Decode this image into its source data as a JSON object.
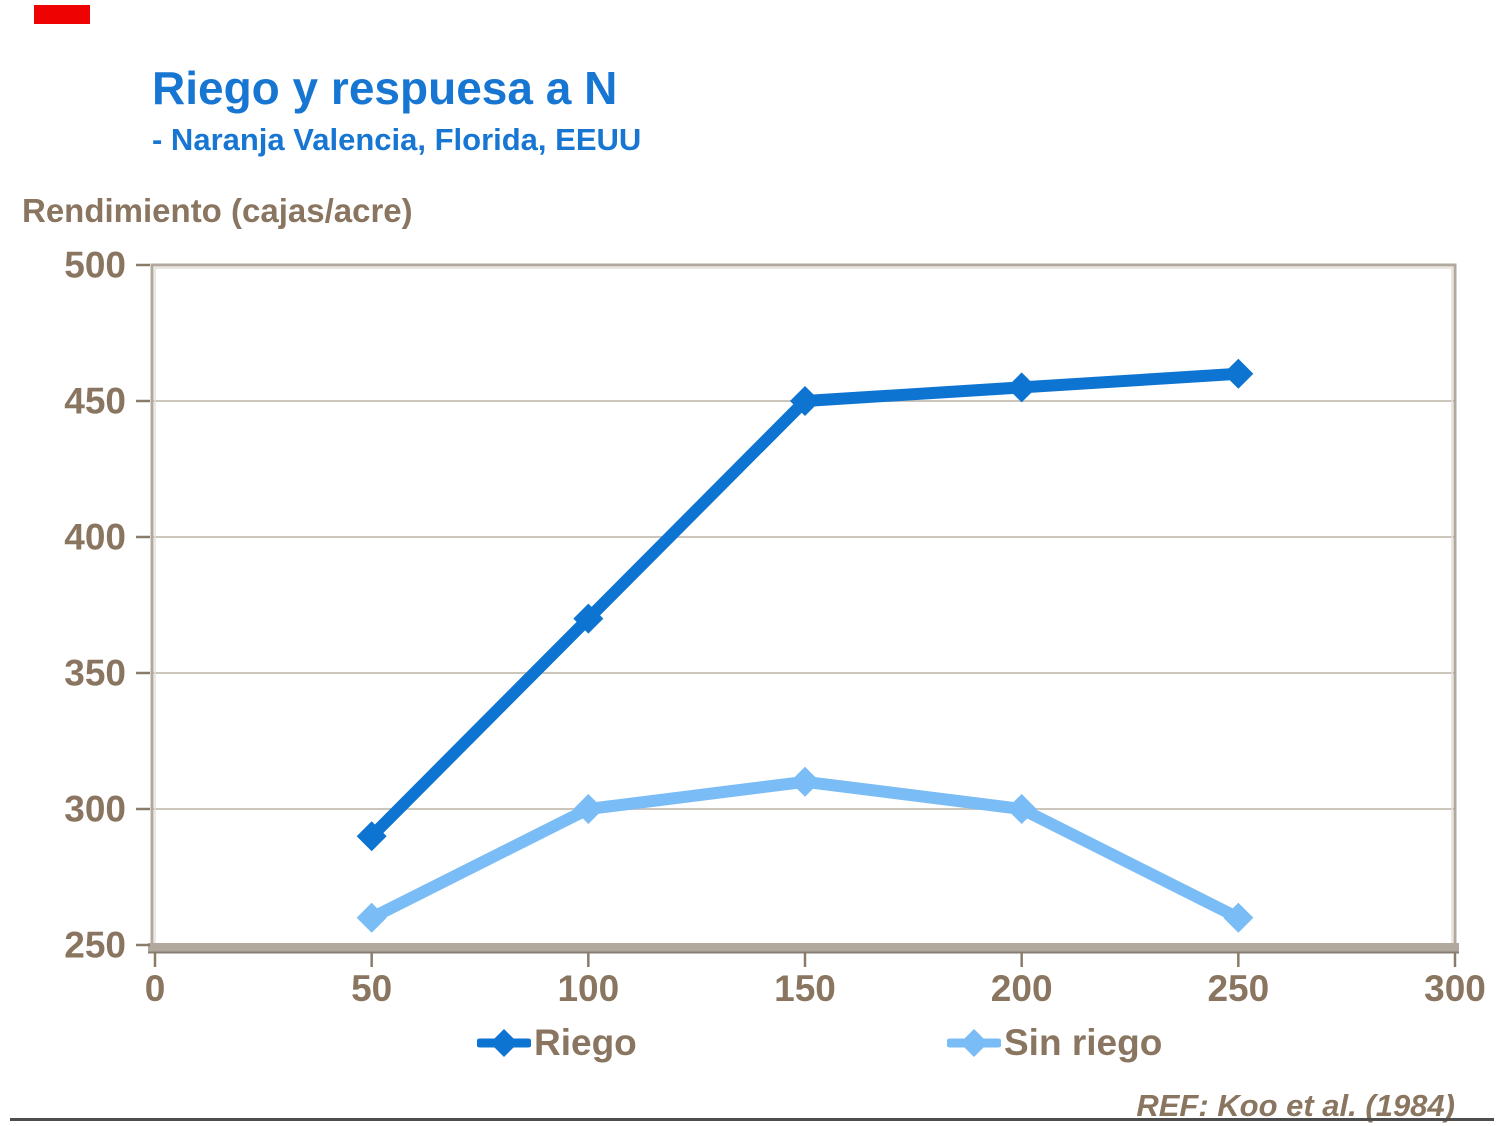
{
  "accent": {
    "color": "#ee0202"
  },
  "header": {
    "title": "Riego y respuesa a N",
    "subtitle": "- Naranja Valencia, Florida, EEUU",
    "title_color": "#1876d3"
  },
  "footer": {
    "ref": "REF: Koo et al. (1984)"
  },
  "colors": {
    "text_brown": "#8a7660",
    "frame": "#b2a99e",
    "frame_dark": "#877e73",
    "frame_light": "#e3ddd5",
    "gridline": "#ccc5bc",
    "tick": "#8b7b6b",
    "bottom_rule": "#4d4d4d"
  },
  "chart_data": {
    "type": "line",
    "title": "Riego y respuesa a N - Naranja Valencia, Florida, EEUU",
    "xlabel": "",
    "ylabel": "Rendimiento (cajas/acre)",
    "x": [
      50,
      100,
      150,
      200,
      250
    ],
    "series": [
      {
        "name": "Riego",
        "color": "#0d74d1",
        "values": [
          290,
          370,
          450,
          455,
          460
        ]
      },
      {
        "name": "Sin riego",
        "color": "#7abcf5",
        "values": [
          260,
          300,
          310,
          300,
          260
        ]
      }
    ],
    "xlim": [
      0,
      300
    ],
    "ylim": [
      250,
      500
    ],
    "xticks": [
      0,
      50,
      100,
      150,
      200,
      250,
      300
    ],
    "yticks": [
      250,
      300,
      350,
      400,
      450,
      500
    ],
    "grid": true,
    "marker": "diamond",
    "legend_position": "bottom"
  }
}
